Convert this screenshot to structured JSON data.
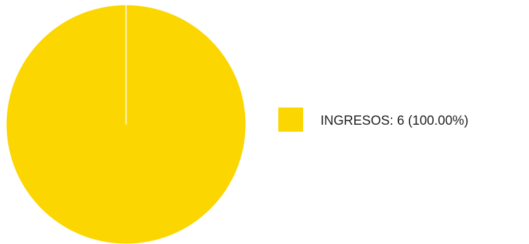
{
  "chart_data": {
    "type": "pie",
    "slices": [
      {
        "label": "INGRESOS",
        "value": 6,
        "percent": 100.0,
        "color": "#FCD600"
      }
    ],
    "legend": "right",
    "legend_entries": [
      "INGRESOS: 6 (100.00%)"
    ],
    "start_angle": "top",
    "slice_border_color": "#ffffff"
  }
}
